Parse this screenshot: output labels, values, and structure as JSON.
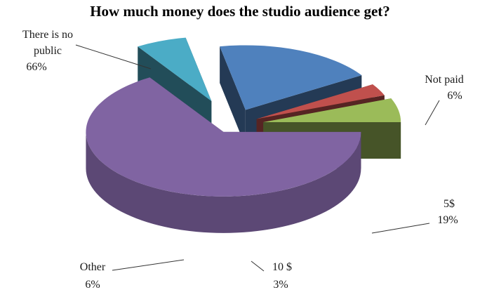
{
  "chart_data": {
    "type": "pie",
    "title": "How much money does the studio audience get?",
    "slices": [
      {
        "category_lines": [
          "There is no",
          "public"
        ],
        "percent_label": "66%",
        "value": 66,
        "color": "#8064a2"
      },
      {
        "category_lines": [
          "Not paid"
        ],
        "percent_label": "6%",
        "value": 6,
        "color": "#4bacc6"
      },
      {
        "category_lines": [
          "5$"
        ],
        "percent_label": "19%",
        "value": 19,
        "color": "#4f81bd"
      },
      {
        "category_lines": [
          "10 $"
        ],
        "percent_label": "3%",
        "value": 3,
        "color": "#c0504d"
      },
      {
        "category_lines": [
          "Other"
        ],
        "percent_label": "6%",
        "value": 6,
        "color": "#9bbb59"
      }
    ],
    "legend": "none",
    "style": "exploded-3d-pie"
  }
}
